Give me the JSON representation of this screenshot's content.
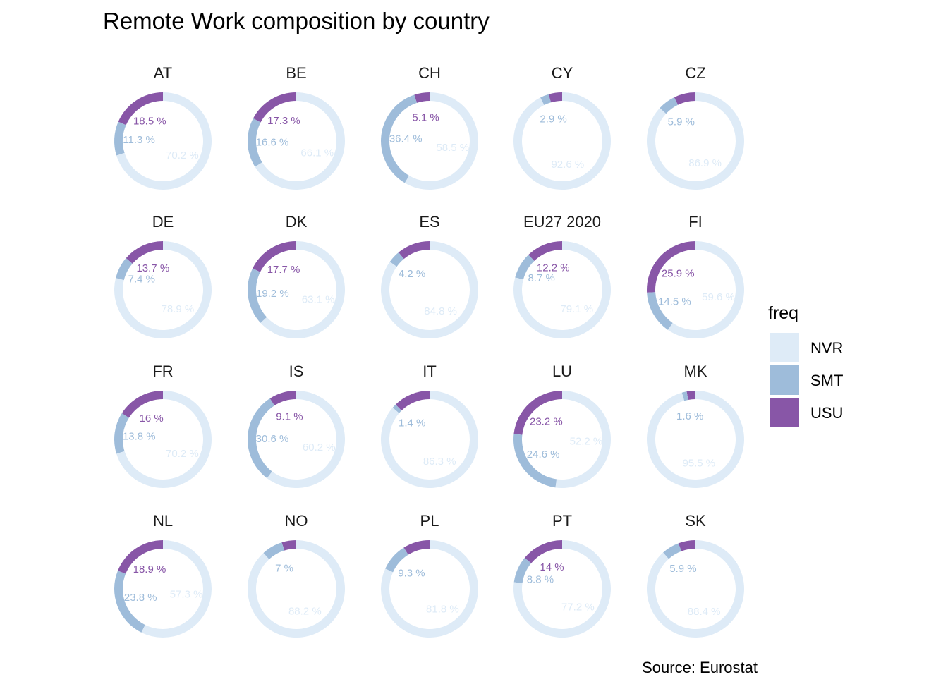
{
  "chart_data": {
    "type": "pie",
    "subtype": "donut facets",
    "title": "Remote Work composition by country",
    "caption": "Source: Eurostat",
    "legend": {
      "title": "freq",
      "position": "right",
      "entries": [
        "NVR",
        "SMT",
        "USU"
      ]
    },
    "colors": {
      "NVR": "#deebf7",
      "SMT": "#9ebcda",
      "USU": "#8856a7"
    },
    "label_unit": " %",
    "panels": [
      {
        "name": "AT",
        "USU": 18.5,
        "SMT": 11.3,
        "NVR": 70.2,
        "labels": {
          "USU": true,
          "SMT": true,
          "NVR": true
        }
      },
      {
        "name": "BE",
        "USU": 17.3,
        "SMT": 16.6,
        "NVR": 66.1,
        "labels": {
          "USU": true,
          "SMT": true,
          "NVR": true
        }
      },
      {
        "name": "CH",
        "USU": 5.1,
        "SMT": 36.4,
        "NVR": 58.5,
        "labels": {
          "USU": true,
          "SMT": true,
          "NVR": true
        }
      },
      {
        "name": "CY",
        "USU": 4.5,
        "SMT": 2.9,
        "NVR": 92.6,
        "labels": {
          "USU": false,
          "SMT": true,
          "NVR": true
        }
      },
      {
        "name": "CZ",
        "USU": 7.2,
        "SMT": 5.9,
        "NVR": 86.9,
        "labels": {
          "USU": false,
          "SMT": true,
          "NVR": true
        }
      },
      {
        "name": "DE",
        "USU": 13.7,
        "SMT": 7.4,
        "NVR": 78.9,
        "labels": {
          "USU": true,
          "SMT": true,
          "NVR": true
        }
      },
      {
        "name": "DK",
        "USU": 17.7,
        "SMT": 19.2,
        "NVR": 63.1,
        "labels": {
          "USU": true,
          "SMT": true,
          "NVR": true
        }
      },
      {
        "name": "ES",
        "USU": 11.0,
        "SMT": 4.2,
        "NVR": 84.8,
        "labels": {
          "USU": false,
          "SMT": true,
          "NVR": true
        }
      },
      {
        "name": "EU27_2020",
        "USU": 12.2,
        "SMT": 8.7,
        "NVR": 79.1,
        "labels": {
          "USU": true,
          "SMT": true,
          "NVR": true
        }
      },
      {
        "name": "FI",
        "USU": 25.9,
        "SMT": 14.5,
        "NVR": 59.6,
        "labels": {
          "USU": true,
          "SMT": true,
          "NVR": true
        }
      },
      {
        "name": "FR",
        "USU": 16,
        "SMT": 13.8,
        "NVR": 70.2,
        "labels": {
          "USU": true,
          "SMT": true,
          "NVR": true
        }
      },
      {
        "name": "IS",
        "USU": 9.1,
        "SMT": 30.6,
        "NVR": 60.2,
        "labels": {
          "USU": true,
          "SMT": true,
          "NVR": true
        }
      },
      {
        "name": "IT",
        "USU": 12.3,
        "SMT": 1.4,
        "NVR": 86.3,
        "labels": {
          "USU": false,
          "SMT": true,
          "NVR": true
        }
      },
      {
        "name": "LU",
        "USU": 23.2,
        "SMT": 24.6,
        "NVR": 52.2,
        "labels": {
          "USU": true,
          "SMT": true,
          "NVR": true
        }
      },
      {
        "name": "MK",
        "USU": 2.9,
        "SMT": 1.6,
        "NVR": 95.5,
        "labels": {
          "USU": false,
          "SMT": true,
          "NVR": true
        }
      },
      {
        "name": "NL",
        "USU": 18.9,
        "SMT": 23.8,
        "NVR": 57.3,
        "labels": {
          "USU": true,
          "SMT": true,
          "NVR": true
        }
      },
      {
        "name": "NO",
        "USU": 4.8,
        "SMT": 7,
        "NVR": 88.2,
        "labels": {
          "USU": false,
          "SMT": true,
          "NVR": true
        }
      },
      {
        "name": "PL",
        "USU": 8.9,
        "SMT": 9.3,
        "NVR": 81.8,
        "labels": {
          "USU": false,
          "SMT": true,
          "NVR": true
        }
      },
      {
        "name": "PT",
        "USU": 14,
        "SMT": 8.8,
        "NVR": 77.2,
        "labels": {
          "USU": true,
          "SMT": true,
          "NVR": true
        }
      },
      {
        "name": "SK",
        "USU": 5.7,
        "SMT": 5.9,
        "NVR": 88.4,
        "labels": {
          "USU": false,
          "SMT": true,
          "NVR": true
        }
      }
    ]
  }
}
